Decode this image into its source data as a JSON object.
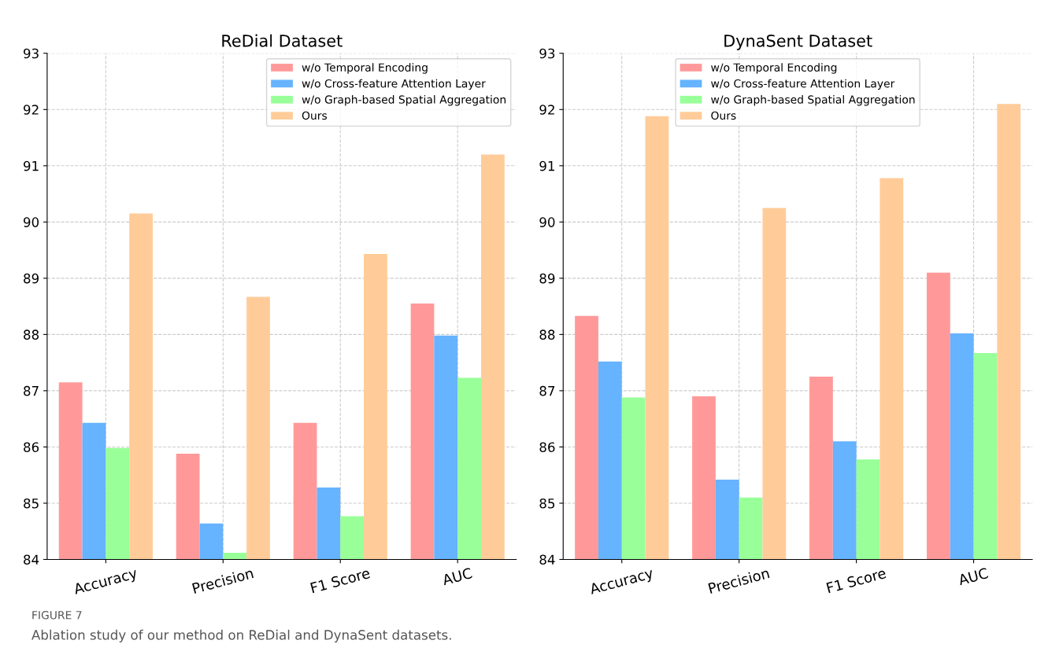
{
  "chart_data": [
    {
      "type": "bar",
      "title": "ReDial Dataset",
      "categories": [
        "Accuracy",
        "Precision",
        "F1 Score",
        "AUC"
      ],
      "series": [
        {
          "name": "w/o Temporal Encoding",
          "color": "#ff9999",
          "values": [
            87.15,
            85.88,
            86.43,
            88.55
          ]
        },
        {
          "name": "w/o Cross-feature Attention Layer",
          "color": "#66b3ff",
          "values": [
            86.43,
            84.64,
            85.28,
            87.98
          ]
        },
        {
          "name": "w/o Graph-based Spatial Aggregation",
          "color": "#99ff99",
          "values": [
            85.98,
            84.12,
            84.77,
            87.23
          ]
        },
        {
          "name": "Ours",
          "color": "#ffcc99",
          "values": [
            90.15,
            88.67,
            89.43,
            91.2
          ]
        }
      ],
      "ylim": [
        84,
        93
      ],
      "yticks": [
        84,
        85,
        86,
        87,
        88,
        89,
        90,
        91,
        92,
        93
      ],
      "grid": true,
      "legend": "top right",
      "annotations": [
        "FIGURE 7",
        "Ablation study of our method on ReDial and DynaSent datasets."
      ]
    },
    {
      "type": "bar",
      "title": "DynaSent Dataset",
      "categories": [
        "Accuracy",
        "Precision",
        "F1 Score",
        "AUC"
      ],
      "series": [
        {
          "name": "w/o Temporal Encoding",
          "color": "#ff9999",
          "values": [
            88.33,
            86.9,
            87.25,
            89.1
          ]
        },
        {
          "name": "w/o Cross-feature Attention Layer",
          "color": "#66b3ff",
          "values": [
            87.52,
            85.42,
            86.1,
            88.02
          ]
        },
        {
          "name": "w/o Graph-based Spatial Aggregation",
          "color": "#99ff99",
          "values": [
            86.88,
            85.1,
            85.78,
            87.67
          ]
        },
        {
          "name": "Ours",
          "color": "#ffcc99",
          "values": [
            91.88,
            90.25,
            90.78,
            92.1
          ]
        }
      ],
      "ylim": [
        84,
        93
      ],
      "yticks": [
        84,
        85,
        86,
        87,
        88,
        89,
        90,
        91,
        92,
        93
      ],
      "grid": true,
      "legend": "top"
    }
  ]
}
